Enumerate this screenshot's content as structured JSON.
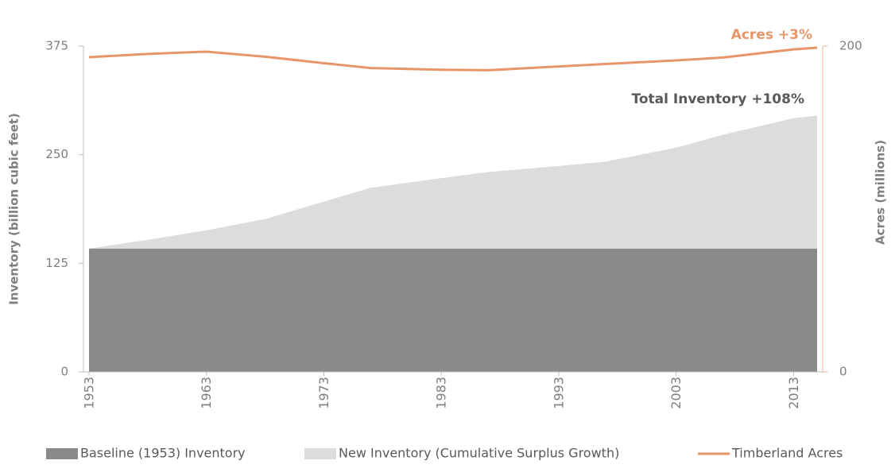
{
  "chart_data": {
    "type": "stacked_area_line",
    "x": [
      1953,
      1958,
      1963,
      1968,
      1973,
      1977,
      1983,
      1987,
      1993,
      1997,
      2003,
      2007,
      2013,
      2015
    ],
    "series": [
      {
        "name": "Baseline (1953) Inventory",
        "color": "#898a8c",
        "kind": "area",
        "values": [
          142,
          142,
          142,
          142,
          142,
          142,
          142,
          142,
          142,
          142,
          142,
          142,
          142,
          142
        ]
      },
      {
        "name": "New Inventory (Cumulative Surplus Growth)",
        "color": "#dcdcdd",
        "kind": "area",
        "values": [
          0,
          10,
          21,
          34,
          54,
          70,
          81,
          88,
          95,
          100,
          116,
          131,
          150,
          153
        ]
      },
      {
        "name": "Timberland Acres",
        "color": "#e8956a",
        "kind": "line",
        "axis": "y2",
        "values": [
          193.2,
          195.2,
          196.6,
          193.5,
          189.5,
          186.5,
          185.5,
          185.2,
          187.5,
          189,
          191.2,
          193,
          198,
          199
        ]
      }
    ],
    "ylabel": "Inventory (billion cubic feet)",
    "y2label": "Acres (millions)",
    "xlim": [
      1953,
      2015
    ],
    "xticks": [
      1953,
      1963,
      1973,
      1983,
      1993,
      2003,
      2013
    ],
    "ylim": [
      0,
      375
    ],
    "yticks": [
      0,
      125,
      250,
      375
    ],
    "y2lim": [
      0,
      200
    ],
    "y2ticks": [
      0,
      200
    ],
    "annotations": [
      "Acres +3%",
      "Total Inventory +108%"
    ],
    "legend": "bottom"
  }
}
